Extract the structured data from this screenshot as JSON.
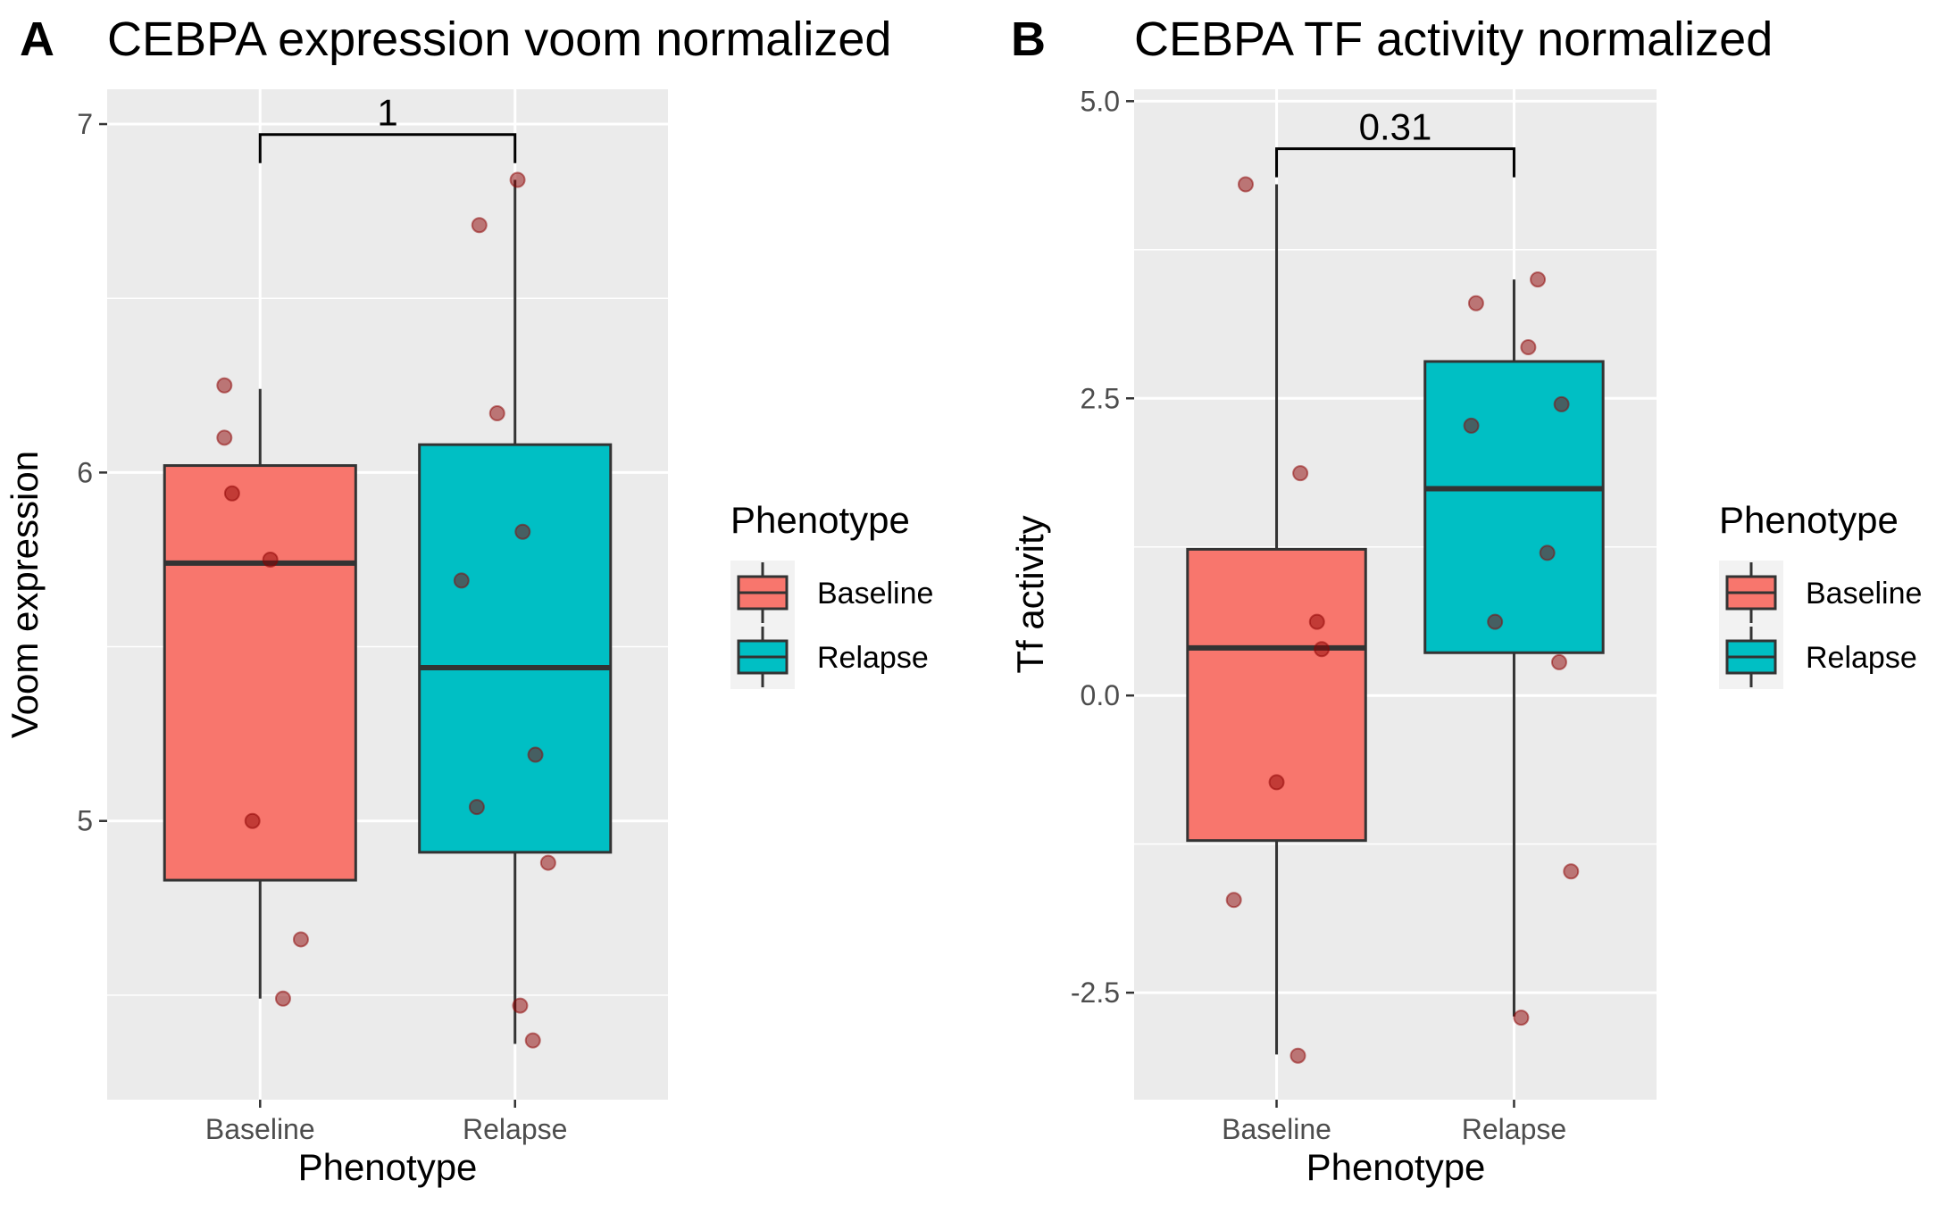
{
  "chart_data": [
    {
      "tag": "A",
      "type": "box",
      "title": "CEBPA expression voom normalized",
      "xlabel": "Phenotype",
      "ylabel": "Voom expression",
      "categories": [
        "Baseline",
        "Relapse"
      ],
      "ylim": [
        4.2,
        7.1
      ],
      "y_major_ticks": [
        5,
        6,
        7
      ],
      "y_tick_labels": [
        "5",
        "6",
        "7"
      ],
      "y_minor_ticks": [
        4.5,
        5.5,
        6.5
      ],
      "grid": true,
      "boxes": [
        {
          "group": "Baseline",
          "q1": 4.83,
          "median": 5.74,
          "q3": 6.02,
          "whisker_low": 4.49,
          "whisker_high": 6.24
        },
        {
          "group": "Relapse",
          "q1": 4.91,
          "median": 5.44,
          "q3": 6.08,
          "whisker_low": 4.36,
          "whisker_high": 6.84
        }
      ],
      "points": [
        {
          "group": "Baseline",
          "x": 0.86,
          "y": 6.25
        },
        {
          "group": "Baseline",
          "x": 0.86,
          "y": 6.1
        },
        {
          "group": "Baseline",
          "x": 0.89,
          "y": 5.94
        },
        {
          "group": "Baseline",
          "x": 1.04,
          "y": 5.75
        },
        {
          "group": "Baseline",
          "x": 0.97,
          "y": 5.0
        },
        {
          "group": "Baseline",
          "x": 1.16,
          "y": 4.66
        },
        {
          "group": "Baseline",
          "x": 1.09,
          "y": 4.49
        },
        {
          "group": "Relapse",
          "x": 1.86,
          "y": 6.71
        },
        {
          "group": "Relapse",
          "x": 2.01,
          "y": 6.84
        },
        {
          "group": "Relapse",
          "x": 1.93,
          "y": 6.17
        },
        {
          "group": "Relapse",
          "x": 1.79,
          "y": 5.69
        },
        {
          "group": "Relapse",
          "x": 2.03,
          "y": 5.83
        },
        {
          "group": "Relapse",
          "x": 2.08,
          "y": 5.19
        },
        {
          "group": "Relapse",
          "x": 1.85,
          "y": 5.04
        },
        {
          "group": "Relapse",
          "x": 2.13,
          "y": 4.88
        },
        {
          "group": "Relapse",
          "x": 2.02,
          "y": 4.47
        },
        {
          "group": "Relapse",
          "x": 2.07,
          "y": 4.37
        }
      ],
      "comparison": {
        "label": "1",
        "y": 6.97
      },
      "legend": {
        "title": "Phenotype",
        "entries": [
          "Baseline",
          "Relapse"
        ],
        "position": "right"
      }
    },
    {
      "tag": "B",
      "type": "box",
      "title": "CEBPA TF activity normalized",
      "xlabel": "Phenotype",
      "ylabel": "Tf activity",
      "categories": [
        "Baseline",
        "Relapse"
      ],
      "ylim": [
        -3.4,
        5.1
      ],
      "y_major_ticks": [
        -2.5,
        0,
        2.5,
        5
      ],
      "y_tick_labels": [
        "-2.5",
        "0.0",
        "2.5",
        "5.0"
      ],
      "y_minor_ticks": [
        -1.25,
        1.25,
        3.75
      ],
      "grid": true,
      "boxes": [
        {
          "group": "Baseline",
          "q1": -1.22,
          "median": 0.4,
          "q3": 1.23,
          "whisker_low": -3.02,
          "whisker_high": 4.3
        },
        {
          "group": "Relapse",
          "q1": 0.36,
          "median": 1.74,
          "q3": 2.81,
          "whisker_low": -2.7,
          "whisker_high": 3.5
        }
      ],
      "points": [
        {
          "group": "Baseline",
          "x": 0.87,
          "y": 4.3
        },
        {
          "group": "Baseline",
          "x": 1.1,
          "y": 1.87
        },
        {
          "group": "Baseline",
          "x": 1.17,
          "y": 0.62
        },
        {
          "group": "Baseline",
          "x": 1.19,
          "y": 0.39
        },
        {
          "group": "Baseline",
          "x": 1.0,
          "y": -0.73
        },
        {
          "group": "Baseline",
          "x": 0.82,
          "y": -1.72
        },
        {
          "group": "Baseline",
          "x": 1.09,
          "y": -3.03
        },
        {
          "group": "Relapse",
          "x": 1.84,
          "y": 3.3
        },
        {
          "group": "Relapse",
          "x": 2.1,
          "y": 3.5
        },
        {
          "group": "Relapse",
          "x": 2.06,
          "y": 2.93
        },
        {
          "group": "Relapse",
          "x": 1.82,
          "y": 2.27
        },
        {
          "group": "Relapse",
          "x": 2.2,
          "y": 2.45
        },
        {
          "group": "Relapse",
          "x": 2.14,
          "y": 1.2
        },
        {
          "group": "Relapse",
          "x": 1.92,
          "y": 0.62
        },
        {
          "group": "Relapse",
          "x": 2.19,
          "y": 0.28
        },
        {
          "group": "Relapse",
          "x": 2.24,
          "y": -1.48
        },
        {
          "group": "Relapse",
          "x": 2.03,
          "y": -2.71
        }
      ],
      "comparison": {
        "label": "0.31",
        "y": 4.6
      },
      "legend": {
        "title": "Phenotype",
        "entries": [
          "Baseline",
          "Relapse"
        ],
        "position": "right"
      }
    }
  ],
  "colors": {
    "baseline_fill": "#F8766D",
    "relapse_fill": "#00BFC4",
    "panel_background": "#EBEBEB",
    "grid_line": "#FFFFFF",
    "box_outline": "#333333",
    "point_fill": "#8B0000",
    "legend_key_background": "#F2F2F2"
  }
}
